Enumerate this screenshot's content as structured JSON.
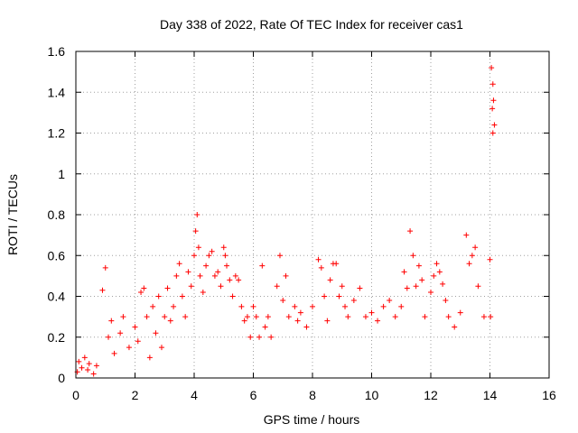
{
  "chart_data": {
    "type": "scatter",
    "title": "Day 338 of 2022, Rate Of TEC Index for receiver cas1",
    "xlabel": "GPS time / hours",
    "ylabel": "ROTI / TECUs",
    "xlim": [
      0,
      16
    ],
    "ylim": [
      0,
      1.6
    ],
    "xticks": [
      0,
      2,
      4,
      6,
      8,
      10,
      12,
      14,
      16
    ],
    "xtick_labels": [
      "0",
      "2",
      "4",
      "6",
      "8",
      "10",
      "12",
      "14",
      "16"
    ],
    "yticks": [
      0,
      0.2,
      0.4,
      0.6,
      0.8,
      1,
      1.2,
      1.4,
      1.6
    ],
    "ytick_labels": [
      "0",
      "0.2",
      "0.4",
      "0.6",
      "0.8",
      "1",
      "1.2",
      "1.4",
      "1.6"
    ],
    "grid": true,
    "marker": "plus",
    "color": "#ff0000",
    "series": [
      {
        "name": "cas1",
        "points": [
          [
            0.05,
            0.03
          ],
          [
            0.1,
            0.08
          ],
          [
            0.2,
            0.05
          ],
          [
            0.3,
            0.1
          ],
          [
            0.4,
            0.04
          ],
          [
            0.45,
            0.07
          ],
          [
            0.6,
            0.02
          ],
          [
            0.7,
            0.06
          ],
          [
            0.9,
            0.43
          ],
          [
            1.0,
            0.54
          ],
          [
            1.1,
            0.2
          ],
          [
            1.2,
            0.28
          ],
          [
            1.3,
            0.12
          ],
          [
            1.5,
            0.22
          ],
          [
            1.6,
            0.3
          ],
          [
            1.8,
            0.15
          ],
          [
            2.0,
            0.25
          ],
          [
            2.1,
            0.18
          ],
          [
            2.2,
            0.42
          ],
          [
            2.3,
            0.44
          ],
          [
            2.4,
            0.3
          ],
          [
            2.5,
            0.1
          ],
          [
            2.6,
            0.35
          ],
          [
            2.7,
            0.22
          ],
          [
            2.8,
            0.4
          ],
          [
            2.9,
            0.15
          ],
          [
            3.0,
            0.3
          ],
          [
            3.1,
            0.44
          ],
          [
            3.2,
            0.28
          ],
          [
            3.3,
            0.35
          ],
          [
            3.4,
            0.5
          ],
          [
            3.5,
            0.56
          ],
          [
            3.6,
            0.4
          ],
          [
            3.7,
            0.3
          ],
          [
            3.8,
            0.52
          ],
          [
            3.9,
            0.45
          ],
          [
            4.0,
            0.6
          ],
          [
            4.05,
            0.72
          ],
          [
            4.1,
            0.8
          ],
          [
            4.15,
            0.64
          ],
          [
            4.2,
            0.5
          ],
          [
            4.3,
            0.42
          ],
          [
            4.4,
            0.55
          ],
          [
            4.5,
            0.6
          ],
          [
            4.6,
            0.62
          ],
          [
            4.7,
            0.5
          ],
          [
            4.8,
            0.52
          ],
          [
            4.9,
            0.45
          ],
          [
            5.0,
            0.64
          ],
          [
            5.05,
            0.6
          ],
          [
            5.1,
            0.55
          ],
          [
            5.2,
            0.48
          ],
          [
            5.3,
            0.4
          ],
          [
            5.4,
            0.5
          ],
          [
            5.5,
            0.48
          ],
          [
            5.6,
            0.35
          ],
          [
            5.7,
            0.28
          ],
          [
            5.8,
            0.3
          ],
          [
            5.9,
            0.2
          ],
          [
            6.0,
            0.35
          ],
          [
            6.1,
            0.3
          ],
          [
            6.2,
            0.2
          ],
          [
            6.3,
            0.55
          ],
          [
            6.4,
            0.25
          ],
          [
            6.5,
            0.3
          ],
          [
            6.6,
            0.2
          ],
          [
            6.8,
            0.45
          ],
          [
            6.9,
            0.6
          ],
          [
            7.0,
            0.38
          ],
          [
            7.1,
            0.5
          ],
          [
            7.2,
            0.3
          ],
          [
            7.4,
            0.35
          ],
          [
            7.5,
            0.28
          ],
          [
            7.6,
            0.32
          ],
          [
            7.8,
            0.25
          ],
          [
            8.0,
            0.35
          ],
          [
            8.2,
            0.58
          ],
          [
            8.3,
            0.54
          ],
          [
            8.4,
            0.4
          ],
          [
            8.5,
            0.28
          ],
          [
            8.6,
            0.48
          ],
          [
            8.7,
            0.56
          ],
          [
            8.8,
            0.56
          ],
          [
            8.9,
            0.4
          ],
          [
            9.0,
            0.45
          ],
          [
            9.1,
            0.35
          ],
          [
            9.2,
            0.3
          ],
          [
            9.4,
            0.38
          ],
          [
            9.6,
            0.44
          ],
          [
            9.8,
            0.3
          ],
          [
            10.0,
            0.32
          ],
          [
            10.2,
            0.28
          ],
          [
            10.4,
            0.35
          ],
          [
            10.6,
            0.38
          ],
          [
            10.8,
            0.3
          ],
          [
            11.0,
            0.35
          ],
          [
            11.1,
            0.52
          ],
          [
            11.2,
            0.44
          ],
          [
            11.3,
            0.72
          ],
          [
            11.4,
            0.6
          ],
          [
            11.5,
            0.45
          ],
          [
            11.6,
            0.55
          ],
          [
            11.7,
            0.48
          ],
          [
            11.8,
            0.3
          ],
          [
            12.0,
            0.42
          ],
          [
            12.1,
            0.5
          ],
          [
            12.2,
            0.56
          ],
          [
            12.3,
            0.52
          ],
          [
            12.4,
            0.46
          ],
          [
            12.5,
            0.38
          ],
          [
            12.6,
            0.3
          ],
          [
            12.8,
            0.25
          ],
          [
            13.0,
            0.32
          ],
          [
            13.2,
            0.7
          ],
          [
            13.3,
            0.56
          ],
          [
            13.4,
            0.6
          ],
          [
            13.5,
            0.64
          ],
          [
            13.6,
            0.45
          ],
          [
            13.8,
            0.3
          ],
          [
            14.0,
            0.58
          ],
          [
            14.05,
            1.52
          ],
          [
            14.1,
            1.44
          ],
          [
            14.12,
            1.36
          ],
          [
            14.15,
            1.24
          ],
          [
            14.1,
            1.2
          ],
          [
            14.08,
            1.32
          ],
          [
            14.02,
            0.3
          ]
        ]
      }
    ]
  }
}
